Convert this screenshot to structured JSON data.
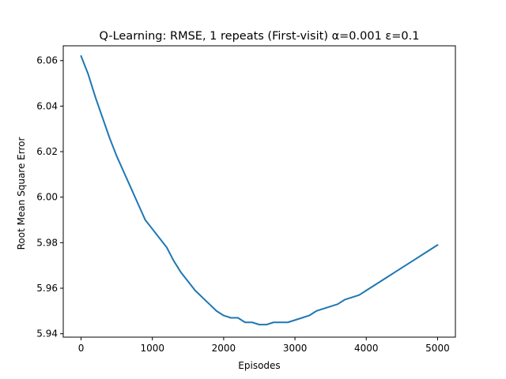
{
  "chart_data": {
    "type": "line",
    "title": "Q-Learning: RMSE, 1 repeats (First-visit) α=0.001 ε=0.1",
    "xlabel": "Episodes",
    "ylabel": "Root Mean Square Error",
    "xlim": [
      -250,
      5250
    ],
    "ylim": [
      5.9385,
      6.0665
    ],
    "xticks": [
      0,
      1000,
      2000,
      3000,
      4000,
      5000
    ],
    "yticks": [
      5.94,
      5.96,
      5.98,
      6.0,
      6.02,
      6.04,
      6.06
    ],
    "ytick_labels": [
      "5.94",
      "5.96",
      "5.98",
      "6.00",
      "6.02",
      "6.04",
      "6.06"
    ],
    "grid": false,
    "legend": "none",
    "series": [
      {
        "color": "#1f77b4",
        "x": [
          0,
          100,
          200,
          300,
          400,
          500,
          600,
          700,
          800,
          900,
          1000,
          1100,
          1200,
          1300,
          1400,
          1500,
          1600,
          1700,
          1800,
          1900,
          2000,
          2100,
          2200,
          2300,
          2400,
          2500,
          2600,
          2700,
          2800,
          2900,
          3000,
          3100,
          3200,
          3300,
          3400,
          3500,
          3600,
          3700,
          3800,
          3900,
          4000,
          4100,
          4200,
          4300,
          4400,
          4500,
          4600,
          4700,
          4800,
          4900,
          5000
        ],
        "y": [
          6.062,
          6.054,
          6.044,
          6.035,
          6.026,
          6.018,
          6.011,
          6.004,
          5.997,
          5.99,
          5.986,
          5.982,
          5.978,
          5.972,
          5.967,
          5.963,
          5.959,
          5.956,
          5.953,
          5.95,
          5.948,
          5.947,
          5.947,
          5.945,
          5.945,
          5.944,
          5.944,
          5.945,
          5.945,
          5.945,
          5.946,
          5.947,
          5.948,
          5.95,
          5.951,
          5.952,
          5.953,
          5.955,
          5.956,
          5.957,
          5.959,
          5.961,
          5.963,
          5.965,
          5.967,
          5.969,
          5.971,
          5.973,
          5.975,
          5.977,
          5.979
        ]
      }
    ]
  }
}
